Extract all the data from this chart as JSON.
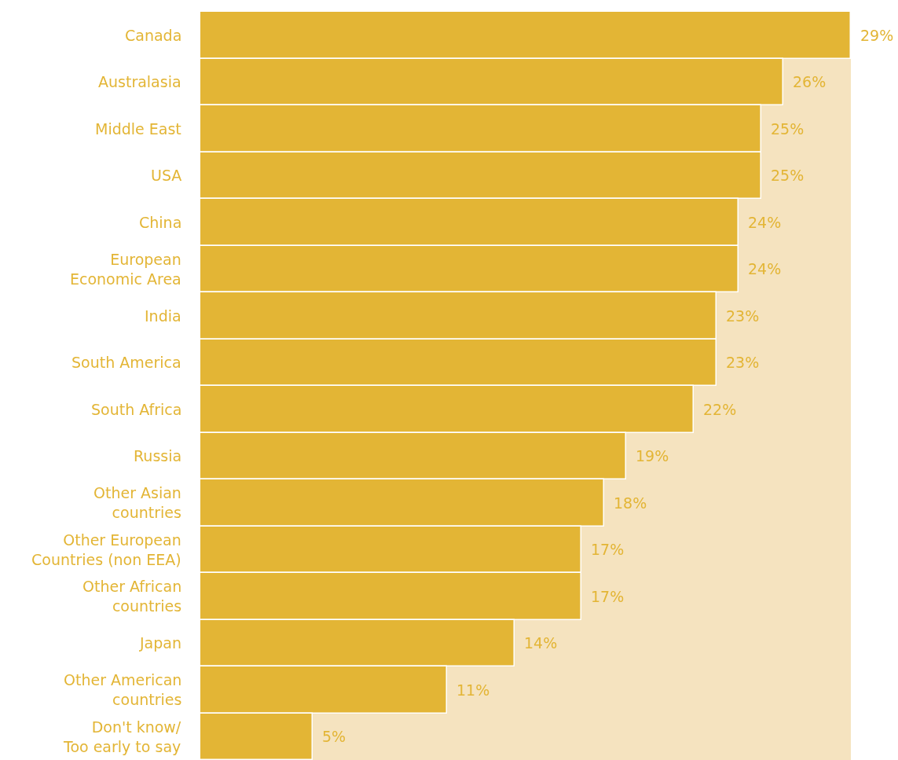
{
  "chart_data": {
    "type": "bar",
    "orientation": "horizontal",
    "categories": [
      "Canada",
      "Australasia",
      "Middle East",
      "USA",
      "China",
      "European\nEconomic Area",
      "India",
      "South America",
      "South Africa",
      "Russia",
      "Other Asian\ncountries",
      "Other European\nCountries (non EEA)",
      "Other African\ncountries",
      "Japan",
      "Other American\ncountries",
      "Don't know/\nToo early to say"
    ],
    "values": [
      29,
      26,
      25,
      25,
      24,
      24,
      23,
      23,
      22,
      19,
      18,
      17,
      17,
      14,
      11,
      5
    ],
    "value_labels": [
      "29%",
      "26%",
      "25%",
      "25%",
      "24%",
      "24%",
      "23%",
      "23%",
      "22%",
      "19%",
      "18%",
      "17%",
      "17%",
      "14%",
      "11%",
      "5%"
    ],
    "color": "#e3b535",
    "xlim": [
      0,
      29
    ],
    "bands": [
      {
        "axis": "x",
        "from": 0,
        "to": 29,
        "color": "#f5e3bf"
      }
    ],
    "tick_labels": false
  }
}
